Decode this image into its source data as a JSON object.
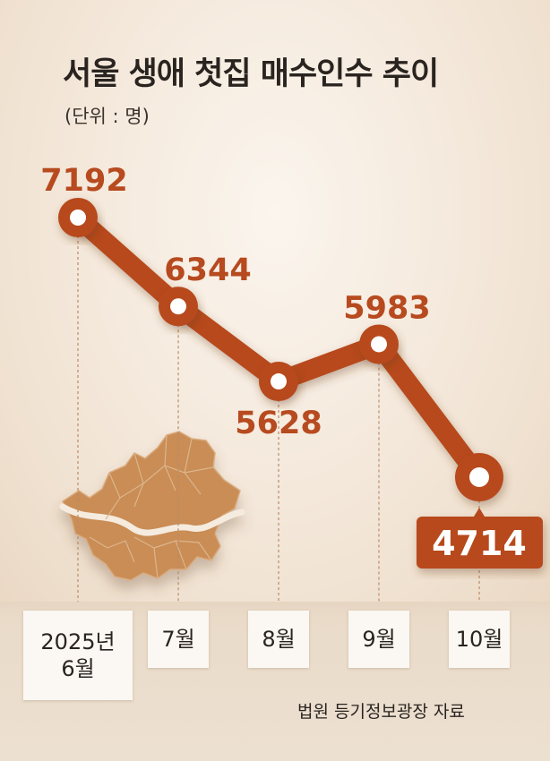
{
  "title": "서울 생애 첫집 매수인수 추이",
  "unit": "(단위 : 명)",
  "source": "법원 등기정보광장 자료",
  "colors": {
    "line": "#b74a1f",
    "highlight_box": "#b74a1f",
    "map": "#c98d55"
  },
  "chart_data": {
    "type": "line",
    "title": "서울 생애 첫집 매수인수 추이",
    "ylabel": "(단위 : 명)",
    "categories": [
      "2025년\n6월",
      "7월",
      "8월",
      "9월",
      "10월"
    ],
    "values": [
      7192,
      6344,
      5628,
      5983,
      4714
    ],
    "value_labels": [
      "7192",
      "6344",
      "5628",
      "5983",
      "4714"
    ],
    "highlight_index": 4,
    "grid": false
  }
}
